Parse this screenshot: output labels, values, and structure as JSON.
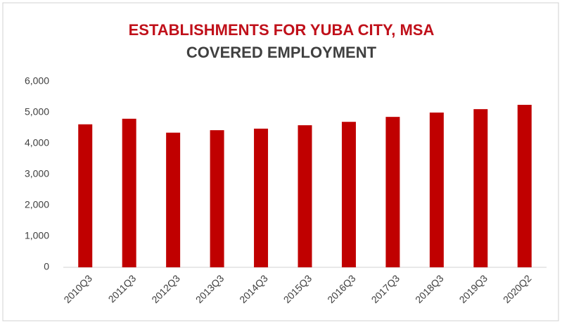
{
  "chart_data": {
    "type": "bar",
    "title": "ESTABLISHMENTS FOR YUBA CITY, MSA",
    "subtitle": "COVERED EMPLOYMENT",
    "categories": [
      "2010Q3",
      "2011Q3",
      "2012Q3",
      "2013Q3",
      "2014Q3",
      "2015Q3",
      "2016Q3",
      "2017Q3",
      "2018Q3",
      "2019Q3",
      "2020Q2"
    ],
    "values": [
      4620,
      4800,
      4350,
      4430,
      4480,
      4590,
      4700,
      4860,
      5000,
      5110,
      5250
    ],
    "color": "#c00000",
    "ylim": [
      0,
      6000
    ],
    "yticks": [
      0,
      {
        "value": 1000,
        "label": "1,000"
      },
      {
        "value": 2000,
        "label": "2,000"
      },
      {
        "value": 3000,
        "label": "3,000"
      },
      {
        "value": 4000,
        "label": "4,000"
      },
      {
        "value": 5000,
        "label": "5,000"
      },
      {
        "value": 6000,
        "label": "6,000"
      }
    ],
    "grid": false
  }
}
